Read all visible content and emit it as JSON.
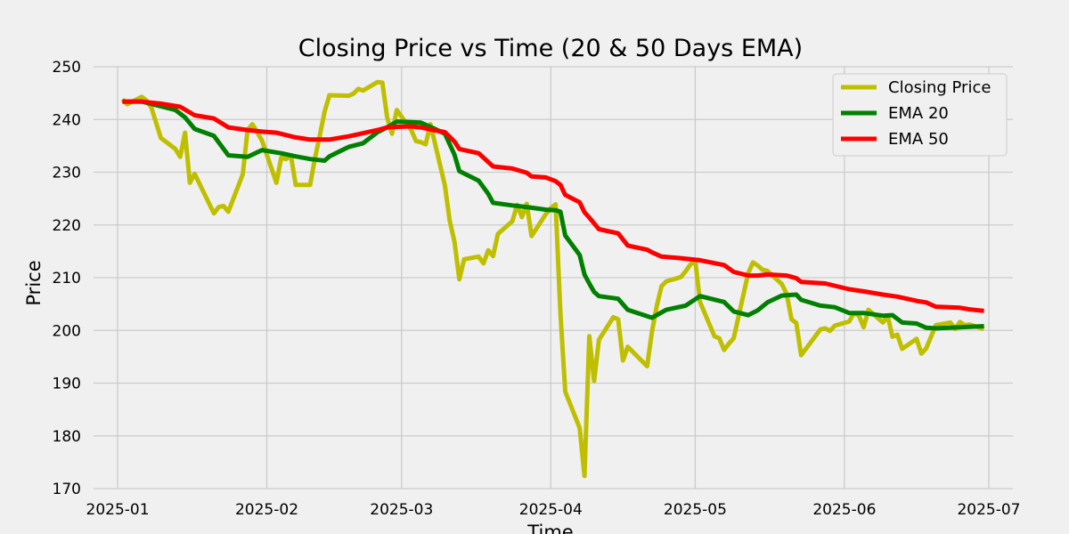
{
  "chart_data": {
    "type": "line",
    "title": "Closing Price vs Time (20 & 50 Days EMA)",
    "xlabel": "Time",
    "ylabel": "Price",
    "ylim": [
      170,
      250
    ],
    "xlim": [
      "2024-12-27",
      "2025-07-06"
    ],
    "yticks": [
      170,
      180,
      190,
      200,
      210,
      220,
      230,
      240,
      250
    ],
    "xticks": [
      {
        "date": "2025-01-01",
        "label": "2025-01"
      },
      {
        "date": "2025-02-01",
        "label": "2025-02"
      },
      {
        "date": "2025-03-01",
        "label": "2025-03"
      },
      {
        "date": "2025-04-01",
        "label": "2025-04"
      },
      {
        "date": "2025-05-01",
        "label": "2025-05"
      },
      {
        "date": "2025-06-01",
        "label": "2025-06"
      },
      {
        "date": "2025-07-01",
        "label": "2025-07"
      }
    ],
    "grid": true,
    "legend_position": "top-right",
    "series": [
      {
        "name": "Closing Price",
        "color": "#bfbf00",
        "points": [
          [
            "2025-01-02",
            243.8
          ],
          [
            "2025-01-03",
            242.9
          ],
          [
            "2025-01-06",
            244.3
          ],
          [
            "2025-01-07",
            243.6
          ],
          [
            "2025-01-08",
            242.3
          ],
          [
            "2025-01-10",
            236.5
          ],
          [
            "2025-01-13",
            234.4
          ],
          [
            "2025-01-14",
            232.9
          ],
          [
            "2025-01-15",
            237.5
          ],
          [
            "2025-01-16",
            228.0
          ],
          [
            "2025-01-17",
            229.7
          ],
          [
            "2025-01-21",
            222.2
          ],
          [
            "2025-01-22",
            223.4
          ],
          [
            "2025-01-23",
            223.6
          ],
          [
            "2025-01-24",
            222.5
          ],
          [
            "2025-01-27",
            229.6
          ],
          [
            "2025-01-28",
            238.0
          ],
          [
            "2025-01-29",
            239.1
          ],
          [
            "2025-01-30",
            237.6
          ],
          [
            "2025-01-31",
            236.0
          ],
          [
            "2025-02-03",
            228.0
          ],
          [
            "2025-02-04",
            232.8
          ],
          [
            "2025-02-05",
            232.5
          ],
          [
            "2025-02-06",
            233.2
          ],
          [
            "2025-02-07",
            227.6
          ],
          [
            "2025-02-10",
            227.6
          ],
          [
            "2025-02-11",
            232.6
          ],
          [
            "2025-02-12",
            236.9
          ],
          [
            "2025-02-13",
            241.5
          ],
          [
            "2025-02-14",
            244.6
          ],
          [
            "2025-02-18",
            244.5
          ],
          [
            "2025-02-19",
            244.9
          ],
          [
            "2025-02-20",
            245.8
          ],
          [
            "2025-02-21",
            245.5
          ],
          [
            "2025-02-24",
            247.1
          ],
          [
            "2025-02-25",
            247.0
          ],
          [
            "2025-02-26",
            240.4
          ],
          [
            "2025-02-27",
            237.3
          ],
          [
            "2025-02-28",
            241.8
          ],
          [
            "2025-03-03",
            238.0
          ],
          [
            "2025-03-04",
            235.9
          ],
          [
            "2025-03-05",
            235.7
          ],
          [
            "2025-03-06",
            235.3
          ],
          [
            "2025-03-07",
            239.1
          ],
          [
            "2025-03-10",
            227.5
          ],
          [
            "2025-03-11",
            220.8
          ],
          [
            "2025-03-12",
            216.8
          ],
          [
            "2025-03-13",
            209.7
          ],
          [
            "2025-03-14",
            213.5
          ],
          [
            "2025-03-17",
            214.0
          ],
          [
            "2025-03-18",
            212.7
          ],
          [
            "2025-03-19",
            215.2
          ],
          [
            "2025-03-20",
            214.1
          ],
          [
            "2025-03-21",
            218.3
          ],
          [
            "2025-03-24",
            220.7
          ],
          [
            "2025-03-25",
            223.8
          ],
          [
            "2025-03-26",
            221.5
          ],
          [
            "2025-03-27",
            224.0
          ],
          [
            "2025-03-28",
            217.9
          ],
          [
            "2025-03-31",
            222.1
          ],
          [
            "2025-04-01",
            223.2
          ],
          [
            "2025-04-02",
            223.9
          ],
          [
            "2025-04-03",
            203.2
          ],
          [
            "2025-04-04",
            188.4
          ],
          [
            "2025-04-07",
            181.5
          ],
          [
            "2025-04-08",
            172.4
          ],
          [
            "2025-04-09",
            198.9
          ],
          [
            "2025-04-10",
            190.4
          ],
          [
            "2025-04-11",
            198.2
          ],
          [
            "2025-04-14",
            202.5
          ],
          [
            "2025-04-15",
            202.1
          ],
          [
            "2025-04-16",
            194.3
          ],
          [
            "2025-04-17",
            196.9
          ],
          [
            "2025-04-21",
            193.2
          ],
          [
            "2025-04-22",
            199.7
          ],
          [
            "2025-04-23",
            204.6
          ],
          [
            "2025-04-24",
            208.4
          ],
          [
            "2025-04-25",
            209.3
          ],
          [
            "2025-04-28",
            210.1
          ],
          [
            "2025-04-29",
            211.2
          ],
          [
            "2025-04-30",
            212.5
          ],
          [
            "2025-05-01",
            213.3
          ],
          [
            "2025-05-02",
            205.4
          ],
          [
            "2025-05-05",
            198.9
          ],
          [
            "2025-05-06",
            198.5
          ],
          [
            "2025-05-07",
            196.3
          ],
          [
            "2025-05-08",
            197.5
          ],
          [
            "2025-05-09",
            198.5
          ],
          [
            "2025-05-12",
            210.8
          ],
          [
            "2025-05-13",
            212.9
          ],
          [
            "2025-05-14",
            212.3
          ],
          [
            "2025-05-15",
            211.5
          ],
          [
            "2025-05-16",
            211.3
          ],
          [
            "2025-05-19",
            208.8
          ],
          [
            "2025-05-20",
            206.9
          ],
          [
            "2025-05-21",
            202.1
          ],
          [
            "2025-05-22",
            201.4
          ],
          [
            "2025-05-23",
            195.3
          ],
          [
            "2025-05-27",
            200.2
          ],
          [
            "2025-05-28",
            200.4
          ],
          [
            "2025-05-29",
            199.9
          ],
          [
            "2025-05-30",
            200.9
          ],
          [
            "2025-06-02",
            201.7
          ],
          [
            "2025-06-03",
            203.3
          ],
          [
            "2025-06-04",
            202.8
          ],
          [
            "2025-06-05",
            200.6
          ],
          [
            "2025-06-06",
            203.9
          ],
          [
            "2025-06-09",
            201.5
          ],
          [
            "2025-06-10",
            202.7
          ],
          [
            "2025-06-11",
            198.8
          ],
          [
            "2025-06-12",
            199.2
          ],
          [
            "2025-06-13",
            196.5
          ],
          [
            "2025-06-16",
            198.4
          ],
          [
            "2025-06-17",
            195.6
          ],
          [
            "2025-06-18",
            196.6
          ],
          [
            "2025-06-20",
            201.0
          ],
          [
            "2025-06-23",
            201.5
          ],
          [
            "2025-06-24",
            200.3
          ],
          [
            "2025-06-25",
            201.6
          ],
          [
            "2025-06-26",
            201.0
          ],
          [
            "2025-06-27",
            201.1
          ],
          [
            "2025-06-30",
            200.3
          ]
        ]
      },
      {
        "name": "EMA 20",
        "color": "#008000",
        "points": [
          [
            "2025-01-02",
            243.4
          ],
          [
            "2025-01-06",
            243.4
          ],
          [
            "2025-01-10",
            242.5
          ],
          [
            "2025-01-13",
            241.8
          ],
          [
            "2025-01-15",
            240.4
          ],
          [
            "2025-01-17",
            238.2
          ],
          [
            "2025-01-21",
            236.9
          ],
          [
            "2025-01-24",
            233.2
          ],
          [
            "2025-01-28",
            232.9
          ],
          [
            "2025-01-31",
            234.2
          ],
          [
            "2025-02-04",
            233.6
          ],
          [
            "2025-02-07",
            233.0
          ],
          [
            "2025-02-10",
            232.5
          ],
          [
            "2025-02-13",
            232.2
          ],
          [
            "2025-02-14",
            233.0
          ],
          [
            "2025-02-18",
            234.8
          ],
          [
            "2025-02-21",
            235.5
          ],
          [
            "2025-02-24",
            237.6
          ],
          [
            "2025-02-26",
            238.5
          ],
          [
            "2025-02-28",
            239.6
          ],
          [
            "2025-03-03",
            239.5
          ],
          [
            "2025-03-05",
            239.4
          ],
          [
            "2025-03-07",
            238.6
          ],
          [
            "2025-03-10",
            237.3
          ],
          [
            "2025-03-12",
            233.3
          ],
          [
            "2025-03-13",
            230.2
          ],
          [
            "2025-03-17",
            228.4
          ],
          [
            "2025-03-19",
            225.9
          ],
          [
            "2025-03-20",
            224.2
          ],
          [
            "2025-03-24",
            223.7
          ],
          [
            "2025-03-27",
            223.4
          ],
          [
            "2025-03-31",
            222.9
          ],
          [
            "2025-04-02",
            222.8
          ],
          [
            "2025-04-03",
            222.5
          ],
          [
            "2025-04-04",
            218.0
          ],
          [
            "2025-04-07",
            214.3
          ],
          [
            "2025-04-08",
            210.6
          ],
          [
            "2025-04-09",
            208.9
          ],
          [
            "2025-04-10",
            207.3
          ],
          [
            "2025-04-11",
            206.5
          ],
          [
            "2025-04-15",
            206.0
          ],
          [
            "2025-04-17",
            203.9
          ],
          [
            "2025-04-22",
            202.4
          ],
          [
            "2025-04-25",
            203.9
          ],
          [
            "2025-04-29",
            204.7
          ],
          [
            "2025-05-02",
            206.5
          ],
          [
            "2025-05-07",
            205.4
          ],
          [
            "2025-05-09",
            203.6
          ],
          [
            "2025-05-12",
            202.9
          ],
          [
            "2025-05-14",
            203.8
          ],
          [
            "2025-05-16",
            205.3
          ],
          [
            "2025-05-19",
            206.6
          ],
          [
            "2025-05-22",
            206.8
          ],
          [
            "2025-05-23",
            205.8
          ],
          [
            "2025-05-27",
            204.7
          ],
          [
            "2025-05-30",
            204.4
          ],
          [
            "2025-06-02",
            203.3
          ],
          [
            "2025-06-05",
            203.3
          ],
          [
            "2025-06-09",
            202.8
          ],
          [
            "2025-06-11",
            202.9
          ],
          [
            "2025-06-13",
            201.5
          ],
          [
            "2025-06-16",
            201.3
          ],
          [
            "2025-06-18",
            200.5
          ],
          [
            "2025-06-20",
            200.4
          ],
          [
            "2025-06-25",
            200.6
          ],
          [
            "2025-06-30",
            200.8
          ]
        ]
      },
      {
        "name": "EMA 50",
        "color": "#ff0000",
        "points": [
          [
            "2025-01-02",
            243.4
          ],
          [
            "2025-01-06",
            243.4
          ],
          [
            "2025-01-08",
            243.2
          ],
          [
            "2025-01-10",
            243.0
          ],
          [
            "2025-01-14",
            242.4
          ],
          [
            "2025-01-17",
            240.8
          ],
          [
            "2025-01-21",
            240.2
          ],
          [
            "2025-01-24",
            238.5
          ],
          [
            "2025-01-28",
            238.0
          ],
          [
            "2025-01-31",
            237.7
          ],
          [
            "2025-02-03",
            237.5
          ],
          [
            "2025-02-07",
            236.6
          ],
          [
            "2025-02-10",
            236.2
          ],
          [
            "2025-02-14",
            236.2
          ],
          [
            "2025-02-18",
            236.8
          ],
          [
            "2025-02-24",
            238.0
          ],
          [
            "2025-02-26",
            238.5
          ],
          [
            "2025-02-28",
            238.6
          ],
          [
            "2025-03-03",
            238.7
          ],
          [
            "2025-03-05",
            238.5
          ],
          [
            "2025-03-07",
            238.1
          ],
          [
            "2025-03-10",
            237.6
          ],
          [
            "2025-03-12",
            235.8
          ],
          [
            "2025-03-13",
            234.4
          ],
          [
            "2025-03-17",
            233.6
          ],
          [
            "2025-03-20",
            231.1
          ],
          [
            "2025-03-24",
            230.7
          ],
          [
            "2025-03-27",
            229.9
          ],
          [
            "2025-03-28",
            229.2
          ],
          [
            "2025-03-31",
            229.0
          ],
          [
            "2025-04-02",
            228.3
          ],
          [
            "2025-04-03",
            227.6
          ],
          [
            "2025-04-04",
            225.7
          ],
          [
            "2025-04-07",
            224.3
          ],
          [
            "2025-04-08",
            222.4
          ],
          [
            "2025-04-09",
            221.4
          ],
          [
            "2025-04-11",
            219.2
          ],
          [
            "2025-04-15",
            218.4
          ],
          [
            "2025-04-17",
            216.1
          ],
          [
            "2025-04-21",
            215.3
          ],
          [
            "2025-04-22",
            214.8
          ],
          [
            "2025-04-24",
            214.0
          ],
          [
            "2025-04-28",
            213.7
          ],
          [
            "2025-05-02",
            213.3
          ],
          [
            "2025-05-07",
            212.4
          ],
          [
            "2025-05-09",
            211.1
          ],
          [
            "2025-05-12",
            210.4
          ],
          [
            "2025-05-14",
            210.4
          ],
          [
            "2025-05-16",
            210.6
          ],
          [
            "2025-05-20",
            210.4
          ],
          [
            "2025-05-22",
            209.9
          ],
          [
            "2025-05-23",
            209.2
          ],
          [
            "2025-05-28",
            208.9
          ],
          [
            "2025-06-02",
            207.8
          ],
          [
            "2025-06-05",
            207.4
          ],
          [
            "2025-06-09",
            206.8
          ],
          [
            "2025-06-12",
            206.4
          ],
          [
            "2025-06-16",
            205.6
          ],
          [
            "2025-06-18",
            205.3
          ],
          [
            "2025-06-20",
            204.5
          ],
          [
            "2025-06-25",
            204.3
          ],
          [
            "2025-06-27",
            204.0
          ],
          [
            "2025-06-30",
            203.7
          ]
        ]
      }
    ]
  }
}
